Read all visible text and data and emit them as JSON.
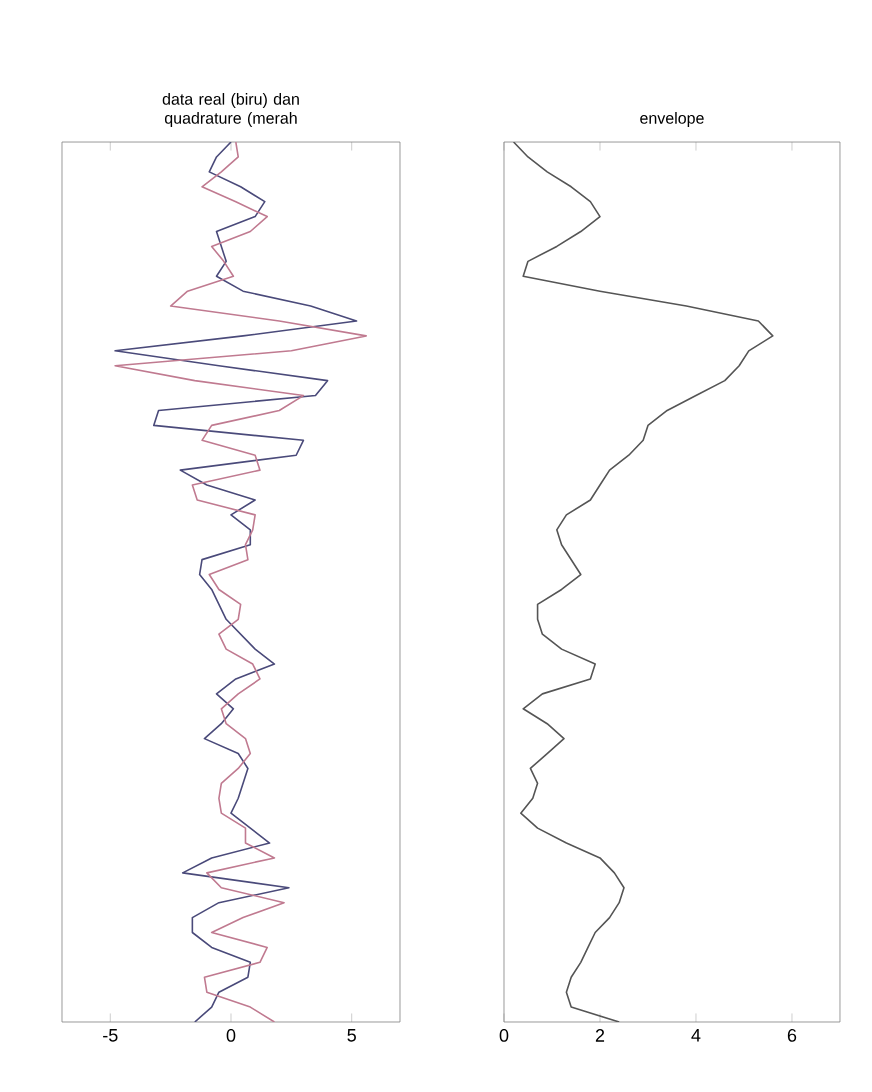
{
  "chart_data": [
    {
      "type": "line",
      "title": "data real (biru) dan quadrature (merah",
      "orientation": "horizontal",
      "tick_labels": "x",
      "categories": [
        null,
        null,
        null,
        null,
        null,
        null,
        null,
        null,
        null,
        null,
        null,
        null,
        null,
        null,
        null,
        null,
        null,
        null,
        null,
        null,
        null,
        null,
        null,
        null,
        null,
        null,
        null,
        null,
        null,
        null,
        null,
        null,
        null,
        null,
        null,
        null,
        null,
        null,
        null,
        null,
        null,
        null,
        null,
        null,
        null,
        null,
        null,
        null,
        null,
        null,
        null,
        null,
        null,
        null,
        null,
        null,
        null,
        null,
        null,
        null
      ],
      "xlim": [
        -7,
        7
      ],
      "xticks": [
        -5,
        0,
        5
      ],
      "series": [
        {
          "color": "#4a4a7a",
          "values": [
            0,
            -0.6,
            -0.9,
            0.4,
            1.4,
            1.0,
            -0.6,
            -0.4,
            -0.2,
            -0.6,
            0.5,
            3.3,
            5.2,
            0.5,
            -4.8,
            -0.5,
            4.0,
            3.5,
            -3.0,
            -3.2,
            3.0,
            2.7,
            -2.1,
            -1.0,
            1.0,
            0,
            0.8,
            0.8,
            -1.2,
            -1.3,
            -0.8,
            -0.5,
            -0.2,
            0.4,
            1.0,
            1.8,
            0.2,
            -0.6,
            0.1,
            -0.4,
            -1.1,
            0.3,
            0.7,
            0.5,
            0.3,
            0,
            0.8,
            1.6,
            -0.8,
            -2.0,
            2.4,
            -0.5,
            -1.6,
            -1.6,
            -0.8,
            0.8,
            0.7,
            -0.5,
            -0.8,
            -1.5
          ]
        },
        {
          "color": "#c07a90",
          "values": [
            0.2,
            0.3,
            -0.4,
            -1.2,
            0.2,
            1.5,
            0.8,
            -0.8,
            -0.3,
            0.1,
            -1.8,
            -2.5,
            2.0,
            5.6,
            2.5,
            -4.8,
            -1.5,
            3.0,
            2.0,
            -0.8,
            -1.2,
            1.0,
            1.2,
            -1.6,
            -1.4,
            1.0,
            0.9,
            0.6,
            0.7,
            -0.9,
            -0.5,
            0.4,
            0.3,
            -0.5,
            -0.2,
            0.9,
            1.2,
            0.3,
            -0.4,
            -0.2,
            0.6,
            0.8,
            0.3,
            -0.4,
            -0.5,
            -0.4,
            0.6,
            0.6,
            1.8,
            -1.0,
            -0.4,
            2.2,
            0.5,
            -0.8,
            1.5,
            1.2,
            -1.1,
            -1.0,
            0.8,
            1.8
          ]
        }
      ]
    },
    {
      "type": "line",
      "title": "envelope",
      "orientation": "horizontal",
      "tick_labels": "x",
      "categories": [
        null,
        null,
        null,
        null,
        null,
        null,
        null,
        null,
        null,
        null,
        null,
        null,
        null,
        null,
        null,
        null,
        null,
        null,
        null,
        null,
        null,
        null,
        null,
        null,
        null,
        null,
        null,
        null,
        null,
        null,
        null,
        null,
        null,
        null,
        null,
        null,
        null,
        null,
        null,
        null,
        null,
        null,
        null,
        null,
        null,
        null,
        null,
        null,
        null,
        null,
        null,
        null,
        null,
        null,
        null,
        null,
        null,
        null,
        null,
        null
      ],
      "xlim": [
        0,
        7
      ],
      "xticks": [
        0,
        2,
        4,
        6
      ],
      "series": [
        {
          "color": "#555555",
          "values": [
            0.2,
            0.5,
            0.9,
            1.4,
            1.8,
            2.0,
            1.6,
            1.1,
            0.5,
            0.4,
            2.0,
            3.8,
            5.3,
            5.6,
            5.1,
            4.9,
            4.6,
            4.0,
            3.4,
            3.0,
            2.9,
            2.6,
            2.2,
            2.0,
            1.8,
            1.3,
            1.1,
            1.2,
            1.4,
            1.6,
            1.2,
            0.7,
            0.7,
            0.8,
            1.2,
            1.9,
            1.8,
            0.8,
            0.4,
            0.9,
            1.25,
            0.9,
            0.55,
            0.7,
            0.6,
            0.35,
            0.7,
            1.3,
            2.0,
            2.3,
            2.5,
            2.4,
            2.2,
            1.9,
            1.75,
            1.6,
            1.4,
            1.3,
            1.4,
            2.4
          ]
        }
      ]
    }
  ]
}
